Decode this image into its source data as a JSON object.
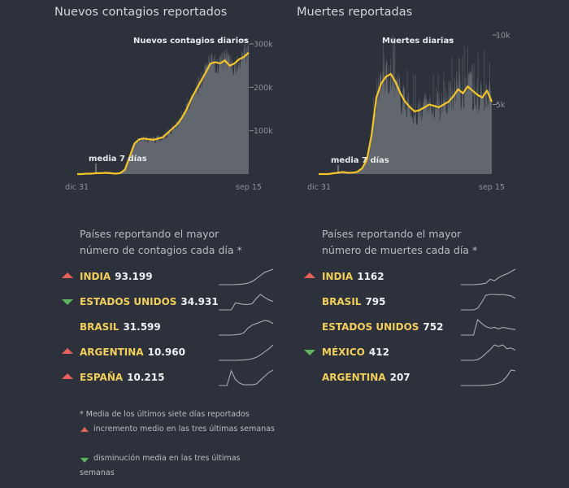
{
  "chart_data": [
    {
      "type": "area",
      "title": "Nuevos contagios reportados",
      "bar_label": "Nuevos contagios diarios",
      "line_label": "media 7 días",
      "x_ticks": [
        "dic 31",
        "sep 15"
      ],
      "y_ticks": [
        "100k",
        "200k",
        "300k"
      ],
      "y_tick_values": [
        100,
        200,
        300
      ],
      "ylim": [
        0,
        300
      ],
      "y_unit": "thousands",
      "x": "weekly, dic 31 to sep 15",
      "series": [
        {
          "name": "media 7 días",
          "values": [
            0,
            0,
            1,
            1,
            2,
            2,
            3,
            2,
            1,
            2,
            10,
            40,
            70,
            80,
            82,
            80,
            79,
            82,
            85,
            95,
            105,
            115,
            130,
            150,
            175,
            195,
            215,
            235,
            255,
            258,
            255,
            262,
            250,
            255,
            265,
            270,
            280
          ]
        }
      ]
    },
    {
      "type": "area",
      "title": "Muertes reportadas",
      "bar_label": "Muertes diarias",
      "line_label": "media 7 días",
      "x_ticks": [
        "dic 31",
        "sep 15"
      ],
      "y_ticks": [
        "5k",
        "10k"
      ],
      "y_tick_values": [
        5,
        10
      ],
      "ylim": [
        0,
        10
      ],
      "y_unit": "thousands",
      "x": "weekly, dic 31 to sep 15",
      "series": [
        {
          "name": "media 7 días",
          "values": [
            0,
            0,
            0,
            0.05,
            0.1,
            0.15,
            0.1,
            0.1,
            0.15,
            0.4,
            1.0,
            2.8,
            5.5,
            6.5,
            7.0,
            7.2,
            6.6,
            5.8,
            5.2,
            4.8,
            4.5,
            4.6,
            4.8,
            5.0,
            4.9,
            4.8,
            5.0,
            5.2,
            5.6,
            6.1,
            5.8,
            6.3,
            6.0,
            5.7,
            5.5,
            6.0,
            5.2
          ]
        }
      ]
    }
  ],
  "colors": {
    "background": "#2c313b",
    "line": "#f2c42a",
    "bars": "#62666d",
    "up": "#e8605a",
    "down": "#5fb45e",
    "country": "#f2cf5b"
  },
  "cases_list": {
    "subtitle_1": "Países reportando el mayor",
    "subtitle_2": "número de contagios cada día *",
    "rows": [
      {
        "trend": "up",
        "name": "INDIA",
        "value": "93.199",
        "spark": [
          0,
          0,
          0,
          0,
          1,
          2,
          5,
          10,
          20,
          40,
          60,
          80,
          90,
          100
        ]
      },
      {
        "trend": "down",
        "name": "ESTADOS UNIDOS",
        "value": "34.931",
        "spark": [
          0,
          0,
          0,
          0,
          45,
          40,
          35,
          35,
          40,
          75,
          100,
          80,
          65,
          55
        ]
      },
      {
        "trend": "none",
        "name": "BRASIL",
        "value": "31.599",
        "spark": [
          0,
          0,
          0,
          0,
          2,
          5,
          15,
          45,
          65,
          75,
          85,
          95,
          90,
          75
        ]
      },
      {
        "trend": "up",
        "name": "ARGENTINA",
        "value": "10.960",
        "spark": [
          0,
          0,
          0,
          0,
          0,
          1,
          2,
          5,
          10,
          20,
          35,
          55,
          75,
          100
        ]
      },
      {
        "trend": "up",
        "name": "ESPAÑA",
        "value": "10.215",
        "spark": [
          0,
          0,
          0,
          95,
          40,
          15,
          5,
          5,
          5,
          10,
          35,
          60,
          85,
          100
        ]
      }
    ]
  },
  "deaths_list": {
    "subtitle_1": "Países reportando el mayor",
    "subtitle_2": "número de muertes cada día *",
    "rows": [
      {
        "trend": "up",
        "name": "INDIA",
        "value": "1162",
        "spark": [
          0,
          0,
          0,
          0,
          2,
          5,
          10,
          35,
          25,
          45,
          60,
          70,
          85,
          100
        ]
      },
      {
        "trend": "none",
        "name": "BRASIL",
        "value": "795",
        "spark": [
          0,
          0,
          0,
          0,
          10,
          50,
          95,
          100,
          100,
          98,
          100,
          95,
          90,
          75
        ]
      },
      {
        "trend": "none",
        "name": "ESTADOS UNIDOS",
        "value": "752",
        "spark": [
          0,
          0,
          0,
          0,
          100,
          75,
          55,
          45,
          50,
          40,
          50,
          45,
          40,
          35
        ]
      },
      {
        "trend": "down",
        "name": "MÉXICO",
        "value": "412",
        "spark": [
          0,
          0,
          0,
          0,
          5,
          20,
          45,
          70,
          100,
          90,
          100,
          75,
          80,
          65
        ]
      },
      {
        "trend": "none",
        "name": "ARGENTINA",
        "value": "207",
        "spark": [
          0,
          0,
          0,
          0,
          0,
          1,
          2,
          4,
          8,
          15,
          30,
          60,
          100,
          95
        ]
      }
    ]
  },
  "notes": {
    "footnote": "* Media de los últimos siete días reportados",
    "up_note": "incremento medio en las tres últimas semanas",
    "down_note": "disminución media en las tres últimas semanas"
  }
}
